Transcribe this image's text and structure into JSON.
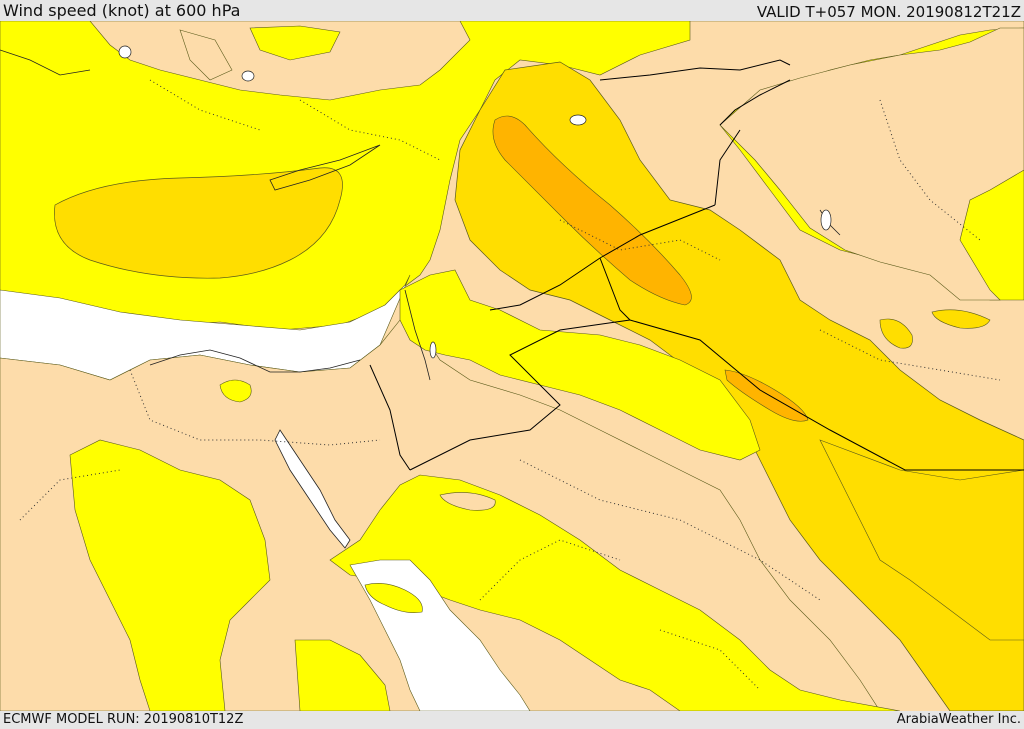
{
  "header": {
    "title": "Wind speed (knot) at 600 hPa",
    "valid": "VALID T+057 MON. 20190812T21Z"
  },
  "footer": {
    "model_run": "ECMWF MODEL RUN: 20190810T12Z",
    "credit": "ArabiaWeather Inc."
  },
  "colors": {
    "land_low": "#fddcaa",
    "yellow": "#ffff00",
    "gold_light": "#ffde00",
    "gold": "#ffcc00",
    "orange": "#ffb400",
    "water_low": "#ffffff",
    "border": "#000000"
  }
}
